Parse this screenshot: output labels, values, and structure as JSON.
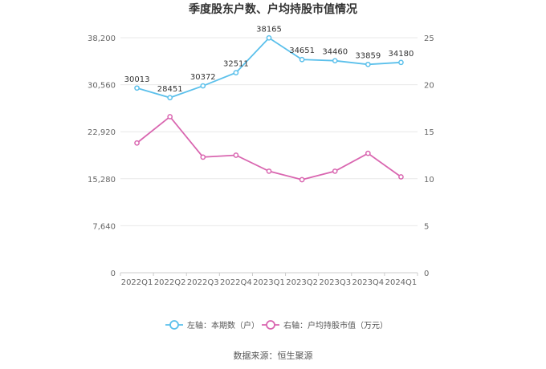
{
  "chart_data": {
    "type": "line",
    "title": "季度股东户数、户均持股市值情况",
    "categories": [
      "2022Q1",
      "2022Q2",
      "2022Q3",
      "2022Q4",
      "2023Q1",
      "2023Q2",
      "2023Q3",
      "2023Q4",
      "2024Q1"
    ],
    "y_left": {
      "ticks": [
        "0",
        "7,640",
        "15,280",
        "22,920",
        "30,560",
        "38,200"
      ],
      "range": [
        0,
        38200
      ]
    },
    "y_right": {
      "ticks": [
        "0",
        "5",
        "10",
        "15",
        "20",
        "25"
      ],
      "range": [
        0,
        25
      ]
    },
    "series": [
      {
        "name": "左轴：本期数（户）",
        "axis": "left",
        "color": "#5bc0eb",
        "values": [
          30013,
          28451,
          30372,
          32511,
          38165,
          34651,
          34460,
          33859,
          34180
        ],
        "labels": [
          "30013",
          "28451",
          "30372",
          "32511",
          "38165",
          "34651",
          "34460",
          "33859",
          "34180"
        ]
      },
      {
        "name": "右轴：户均持股市值（万元）",
        "axis": "right",
        "color": "#d966b0",
        "values": [
          13.8,
          16.6,
          12.3,
          12.5,
          10.8,
          9.9,
          10.8,
          12.7,
          10.2
        ]
      }
    ],
    "grid": "horizontal",
    "legend_position": "bottom"
  },
  "footer": {
    "source": "数据来源：恒生聚源"
  }
}
